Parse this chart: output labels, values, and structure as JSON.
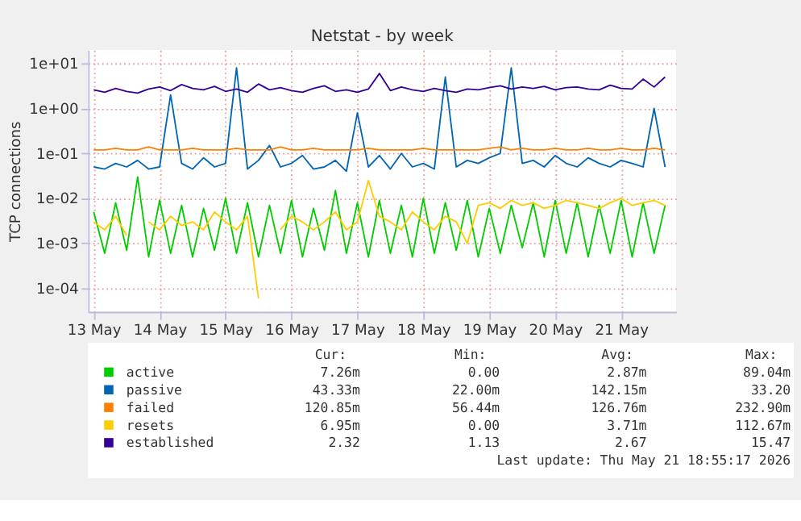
{
  "chart_data": {
    "type": "line",
    "title": "Netstat - by week",
    "ylabel": "TCP connections",
    "x": [
      "2026-05-13T00:00",
      "2026-05-13T04:00",
      "2026-05-13T08:00",
      "2026-05-13T12:00",
      "2026-05-13T16:00",
      "2026-05-13T20:00",
      "2026-05-14T00:00",
      "2026-05-14T04:00",
      "2026-05-14T08:00",
      "2026-05-14T12:00",
      "2026-05-14T16:00",
      "2026-05-14T20:00",
      "2026-05-15T00:00",
      "2026-05-15T04:00",
      "2026-05-15T08:00",
      "2026-05-15T12:00",
      "2026-05-15T16:00",
      "2026-05-15T20:00",
      "2026-05-16T00:00",
      "2026-05-16T04:00",
      "2026-05-16T08:00",
      "2026-05-16T12:00",
      "2026-05-16T16:00",
      "2026-05-16T20:00",
      "2026-05-17T00:00",
      "2026-05-17T04:00",
      "2026-05-17T08:00",
      "2026-05-17T12:00",
      "2026-05-17T16:00",
      "2026-05-17T20:00",
      "2026-05-18T00:00",
      "2026-05-18T04:00",
      "2026-05-18T08:00",
      "2026-05-18T12:00",
      "2026-05-18T16:00",
      "2026-05-18T20:00",
      "2026-05-19T00:00",
      "2026-05-19T04:00",
      "2026-05-19T08:00",
      "2026-05-19T12:00",
      "2026-05-19T16:00",
      "2026-05-19T20:00",
      "2026-05-20T00:00",
      "2026-05-20T04:00",
      "2026-05-20T08:00",
      "2026-05-20T12:00",
      "2026-05-20T16:00",
      "2026-05-20T20:00",
      "2026-05-21T00:00",
      "2026-05-21T04:00",
      "2026-05-21T08:00",
      "2026-05-21T12:00",
      "2026-05-21T16:00"
    ],
    "series": [
      {
        "name": "active",
        "color": "#00cc00",
        "values": [
          0.005,
          0.0006,
          0.008,
          0.0007,
          0.03,
          0.0005,
          0.009,
          0.0006,
          0.007,
          0.0005,
          0.006,
          0.0007,
          0.01,
          0.0006,
          0.008,
          0.0005,
          0.007,
          0.0006,
          0.009,
          0.0005,
          0.006,
          0.0007,
          0.015,
          0.0006,
          0.008,
          0.0005,
          0.009,
          0.0006,
          0.007,
          0.0005,
          0.01,
          0.0006,
          0.008,
          0.0007,
          0.009,
          0.0005,
          0.006,
          0.0006,
          0.007,
          0.0008,
          0.008,
          0.0005,
          0.009,
          0.0006,
          0.008,
          0.0005,
          0.007,
          0.0006,
          0.009,
          0.0005,
          0.008,
          0.0006,
          0.007
        ]
      },
      {
        "name": "passive",
        "color": "#0066b3",
        "values": [
          0.05,
          0.045,
          0.06,
          0.05,
          0.07,
          0.045,
          0.05,
          2.0,
          0.06,
          0.045,
          0.08,
          0.05,
          0.06,
          8.0,
          0.045,
          0.07,
          0.15,
          0.05,
          0.06,
          0.09,
          0.045,
          0.05,
          0.07,
          0.04,
          0.8,
          0.05,
          0.09,
          0.045,
          0.1,
          0.05,
          0.06,
          0.045,
          5.0,
          0.05,
          0.07,
          0.06,
          0.08,
          0.1,
          8.0,
          0.06,
          0.07,
          0.05,
          0.09,
          0.06,
          0.05,
          0.08,
          0.06,
          0.05,
          0.07,
          0.06,
          0.05,
          1.0,
          0.05
        ]
      },
      {
        "name": "failed",
        "color": "#ff8000",
        "values": [
          0.12,
          0.12,
          0.13,
          0.12,
          0.12,
          0.14,
          0.12,
          0.12,
          0.12,
          0.13,
          0.12,
          0.12,
          0.12,
          0.13,
          0.12,
          0.12,
          0.12,
          0.14,
          0.12,
          0.12,
          0.13,
          0.12,
          0.12,
          0.12,
          0.12,
          0.13,
          0.12,
          0.12,
          0.12,
          0.12,
          0.13,
          0.12,
          0.12,
          0.12,
          0.12,
          0.12,
          0.13,
          0.14,
          0.12,
          0.13,
          0.12,
          0.12,
          0.13,
          0.12,
          0.12,
          0.13,
          0.12,
          0.12,
          0.13,
          0.12,
          0.12,
          0.13,
          0.12
        ]
      },
      {
        "name": "resets",
        "color": "#ffcc00",
        "values": [
          0.003,
          0.002,
          0.004,
          0.0015,
          null,
          0.003,
          0.002,
          0.004,
          0.0025,
          0.003,
          0.002,
          0.005,
          0.003,
          0.002,
          0.004,
          6e-05,
          null,
          0.002,
          0.004,
          0.003,
          0.002,
          0.003,
          0.005,
          0.002,
          0.003,
          0.025,
          0.004,
          0.003,
          0.002,
          0.005,
          0.003,
          0.002,
          0.004,
          0.003,
          0.001,
          0.007,
          0.008,
          0.006,
          0.009,
          0.007,
          0.008,
          0.006,
          0.007,
          0.009,
          0.008,
          0.007,
          0.006,
          0.008,
          0.01,
          0.007,
          0.008,
          0.009,
          0.007
        ]
      },
      {
        "name": "established",
        "color": "#330099",
        "values": [
          2.6,
          2.3,
          2.8,
          2.4,
          2.2,
          2.7,
          3.0,
          2.5,
          3.4,
          2.8,
          2.6,
          3.1,
          2.4,
          2.7,
          2.3,
          3.5,
          2.6,
          2.9,
          2.5,
          2.3,
          2.8,
          3.2,
          2.4,
          2.6,
          2.3,
          2.7,
          6.0,
          2.5,
          3.0,
          2.6,
          2.4,
          2.8,
          2.5,
          2.3,
          2.7,
          2.6,
          2.9,
          3.2,
          2.7,
          3.0,
          2.8,
          3.1,
          2.6,
          2.9,
          3.0,
          2.7,
          2.6,
          3.3,
          2.8,
          2.7,
          4.5,
          3.0,
          5.0
        ]
      }
    ],
    "log": "y",
    "xlim": [
      "2026-05-12T22:00",
      "2026-05-21T20:00"
    ],
    "xticks": [
      {
        "value": "2026-05-13",
        "label": "13 May"
      },
      {
        "value": "2026-05-14",
        "label": "14 May"
      },
      {
        "value": "2026-05-15",
        "label": "15 May"
      },
      {
        "value": "2026-05-16",
        "label": "16 May"
      },
      {
        "value": "2026-05-17",
        "label": "17 May"
      },
      {
        "value": "2026-05-18",
        "label": "18 May"
      },
      {
        "value": "2026-05-19",
        "label": "19 May"
      },
      {
        "value": "2026-05-20",
        "label": "20 May"
      },
      {
        "value": "2026-05-21",
        "label": "21 May"
      }
    ],
    "ylim": [
      3e-05,
      20
    ],
    "yticks": [
      {
        "value": 0.0001,
        "label": "1e-04"
      },
      {
        "value": 0.001,
        "label": "1e-03"
      },
      {
        "value": 0.01,
        "label": "1e-02"
      },
      {
        "value": 0.1,
        "label": "1e-01"
      },
      {
        "value": 1,
        "label": "1e+00"
      },
      {
        "value": 10,
        "label": "1e+01"
      }
    ],
    "grid": true,
    "legend": "bottom",
    "annotations": [
      "Cur:",
      "Min:",
      "Avg:",
      "Max:",
      "7.26m",
      "0.00",
      "2.87m",
      "89.04m",
      "43.33m",
      "22.00m",
      "142.15m",
      "33.20",
      "120.85m",
      "56.44m",
      "126.76m",
      "232.90m",
      "6.95m",
      "0.00",
      "3.71m",
      "112.67m",
      "2.32",
      "1.13",
      "2.67",
      "15.47",
      "Last update: Thu May 21 18:55:17 2026"
    ]
  }
}
